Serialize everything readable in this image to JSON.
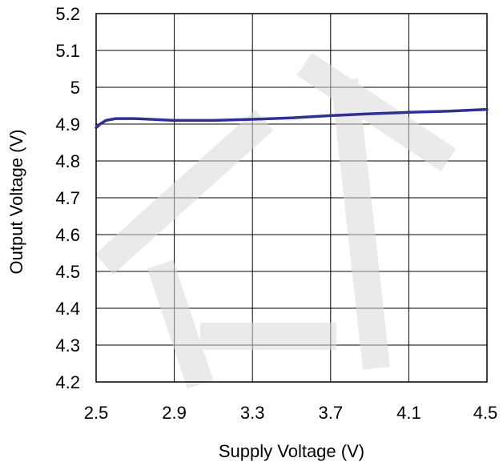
{
  "chart_data": {
    "type": "line",
    "title": "",
    "xlabel": "Supply Voltage (V)",
    "ylabel": "Output Voltage (V)",
    "xlim": [
      2.5,
      4.5
    ],
    "ylim": [
      4.2,
      5.2
    ],
    "x_ticks": [
      "2.5",
      "2.9",
      "3.3",
      "3.7",
      "4.1",
      "4.5"
    ],
    "x_tick_values": [
      2.5,
      2.9,
      3.3,
      3.7,
      4.1,
      4.5
    ],
    "y_ticks": [
      "4.2",
      "4.3",
      "4.4",
      "4.5",
      "4.6",
      "4.7",
      "4.8",
      "4.9",
      "5",
      "5.1",
      "5.2"
    ],
    "y_tick_values": [
      4.2,
      4.3,
      4.4,
      4.5,
      4.6,
      4.7,
      4.8,
      4.9,
      5.0,
      5.1,
      5.2
    ],
    "grid": true,
    "series": [
      {
        "color": "#2e3192",
        "x": [
          2.5,
          2.52,
          2.55,
          2.6,
          2.7,
          2.9,
          3.1,
          3.3,
          3.5,
          3.7,
          3.9,
          4.1,
          4.3,
          4.5
        ],
        "y": [
          4.89,
          4.9,
          4.91,
          4.915,
          4.915,
          4.91,
          4.91,
          4.913,
          4.917,
          4.923,
          4.928,
          4.932,
          4.935,
          4.94
        ]
      }
    ]
  }
}
